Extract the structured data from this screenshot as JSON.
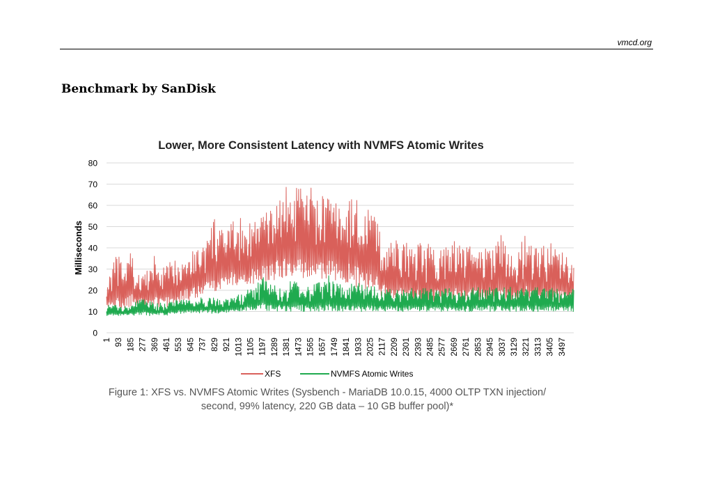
{
  "header": {
    "site": "vmcd.org"
  },
  "section": {
    "title": "Benchmark by SanDisk"
  },
  "caption": {
    "line1": "Figure 1: XFS vs. NVMFS Atomic Writes (Sysbench - MariaDB 10.0.15, 4000 OLTP TXN injection/",
    "line2": "second, 99% latency, 220 GB data – 10 GB buffer pool)*"
  },
  "chart_data": {
    "type": "line",
    "title": "Lower, More Consistent Latency with NVMFS Atomic Writes",
    "xlabel": "",
    "ylabel": "Milliseconds",
    "ylim": [
      0,
      80
    ],
    "yticks": [
      0,
      10,
      20,
      30,
      40,
      50,
      60,
      70,
      80
    ],
    "xlim": [
      1,
      3589
    ],
    "xticks": [
      1,
      93,
      185,
      277,
      369,
      461,
      553,
      645,
      737,
      829,
      921,
      1013,
      1105,
      1197,
      1289,
      1381,
      1473,
      1565,
      1657,
      1749,
      1841,
      1933,
      2025,
      2117,
      2209,
      2301,
      2393,
      2485,
      2577,
      2669,
      2761,
      2853,
      2945,
      3037,
      3129,
      3221,
      3313,
      3405,
      3497
    ],
    "grid": true,
    "legend": "bottom",
    "colors": {
      "XFS": "#d9605a",
      "NVMFS Atomic Writes": "#1faa4f"
    },
    "series": [
      {
        "name": "XFS",
        "x": [
          1,
          46,
          93,
          139,
          185,
          231,
          277,
          323,
          369,
          415,
          461,
          507,
          553,
          599,
          645,
          691,
          737,
          783,
          829,
          875,
          921,
          967,
          1013,
          1059,
          1105,
          1151,
          1197,
          1243,
          1289,
          1335,
          1381,
          1427,
          1473,
          1519,
          1565,
          1611,
          1657,
          1703,
          1749,
          1795,
          1841,
          1887,
          1933,
          1979,
          2025,
          2071,
          2117,
          2163,
          2209,
          2255,
          2301,
          2347,
          2393,
          2439,
          2485,
          2531,
          2577,
          2623,
          2669,
          2715,
          2761,
          2807,
          2853,
          2899,
          2945,
          2991,
          3037,
          3083,
          3129,
          3175,
          3221,
          3267,
          3313,
          3359,
          3405,
          3451,
          3497,
          3543,
          3589
        ],
        "high": [
          22,
          34,
          37,
          30,
          41,
          26,
          30,
          29,
          37,
          30,
          32,
          34,
          36,
          38,
          39,
          40,
          42,
          46,
          55,
          48,
          50,
          52,
          56,
          51,
          55,
          53,
          60,
          56,
          62,
          66,
          69,
          64,
          70,
          66,
          70,
          62,
          65,
          66,
          63,
          60,
          61,
          65,
          63,
          61,
          58,
          56,
          45,
          42,
          44,
          43,
          44,
          42,
          43,
          41,
          42,
          40,
          41,
          42,
          44,
          42,
          41,
          41,
          40,
          41,
          39,
          41,
          48,
          41,
          39,
          40,
          50,
          40,
          40,
          41,
          43,
          41,
          39,
          35,
          34
        ],
        "low": [
          11,
          11,
          11,
          11,
          12,
          12,
          12,
          12,
          12,
          12,
          12,
          13,
          14,
          15,
          15,
          16,
          17,
          18,
          19,
          20,
          21,
          22,
          22,
          22,
          22,
          23,
          23,
          24,
          24,
          25,
          25,
          25,
          25,
          25,
          25,
          25,
          24,
          24,
          24,
          24,
          23,
          22,
          21,
          20,
          19,
          18,
          16,
          15,
          15,
          14,
          14,
          13,
          13,
          13,
          14,
          14,
          14,
          14,
          14,
          14,
          14,
          14,
          14,
          14,
          14,
          14,
          14,
          14,
          14,
          14,
          14,
          14,
          14,
          14,
          14,
          14,
          14,
          14,
          14
        ]
      },
      {
        "name": "NVMFS Atomic Writes",
        "x": [
          1,
          46,
          93,
          139,
          185,
          231,
          277,
          323,
          369,
          415,
          461,
          507,
          553,
          599,
          645,
          691,
          737,
          783,
          829,
          875,
          921,
          967,
          1013,
          1059,
          1105,
          1151,
          1197,
          1243,
          1289,
          1335,
          1381,
          1427,
          1473,
          1519,
          1565,
          1611,
          1657,
          1703,
          1749,
          1795,
          1841,
          1887,
          1933,
          1979,
          2025,
          2071,
          2117,
          2163,
          2209,
          2255,
          2301,
          2347,
          2393,
          2439,
          2485,
          2531,
          2577,
          2623,
          2669,
          2715,
          2761,
          2807,
          2853,
          2899,
          2945,
          2991,
          3037,
          3083,
          3129,
          3175,
          3221,
          3267,
          3313,
          3359,
          3405,
          3451,
          3497,
          3543,
          3589
        ],
        "high": [
          13,
          13,
          13,
          13,
          13,
          15,
          17,
          15,
          14,
          14,
          14,
          16,
          17,
          16,
          16,
          15,
          17,
          17,
          17,
          15,
          16,
          17,
          18,
          19,
          21,
          22,
          27,
          23,
          24,
          22,
          21,
          26,
          23,
          24,
          22,
          24,
          24,
          28,
          23,
          23,
          22,
          24,
          24,
          22,
          22,
          22,
          20,
          22,
          21,
          20,
          21,
          21,
          21,
          21,
          21,
          20,
          21,
          21,
          20,
          20,
          21,
          21,
          22,
          21,
          22,
          21,
          21,
          22,
          21,
          21,
          22,
          21,
          22,
          21,
          21,
          21,
          21,
          21,
          21
        ],
        "low": [
          8,
          8,
          8,
          8,
          8,
          8,
          8,
          8,
          8,
          8,
          8,
          9,
          9,
          9,
          9,
          9,
          9,
          9,
          9,
          9,
          9,
          10,
          10,
          10,
          10,
          10,
          10,
          10,
          10,
          10,
          10,
          10,
          10,
          10,
          10,
          10,
          10,
          10,
          10,
          10,
          10,
          10,
          10,
          10,
          10,
          10,
          10,
          10,
          10,
          10,
          10,
          10,
          10,
          10,
          10,
          10,
          10,
          10,
          10,
          10,
          10,
          10,
          10,
          10,
          10,
          10,
          10,
          10,
          10,
          10,
          10,
          10,
          10,
          10,
          10,
          10,
          10,
          10,
          10
        ]
      }
    ]
  }
}
